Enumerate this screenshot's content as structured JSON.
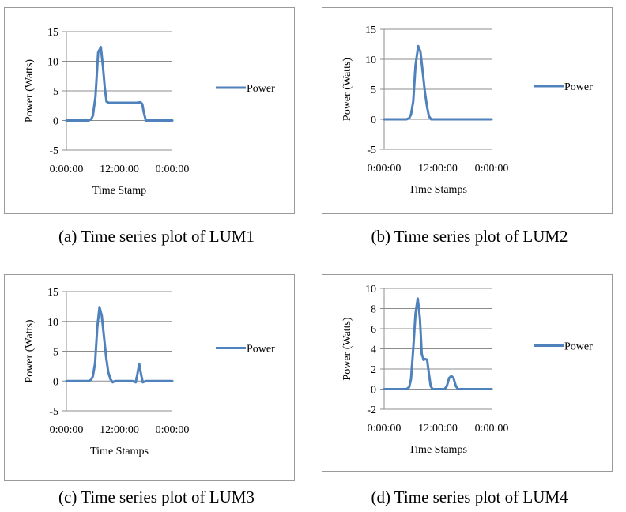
{
  "colors": {
    "series": "#4f81bd",
    "grid": "#8c8c8c",
    "border": "#9a9a9a"
  },
  "captions": [
    "(a) Time series plot of LUM1",
    "(b) Time series plot of LUM2",
    "(c) Time series plot of LUM3",
    "(d) Time series plot of LUM4"
  ],
  "chart_data": [
    {
      "type": "line",
      "xlabel": "Time Stamp",
      "ylabel": "Power (Watts)",
      "x_tick_labels": [
        "0:00:00",
        "12:00:00",
        "0:00:00"
      ],
      "y_ticks": [
        15,
        10,
        5,
        0,
        -5
      ],
      "ylim": [
        -5,
        15
      ],
      "xlim_hours": [
        0,
        24
      ],
      "grid": "horizontal",
      "legend": "right",
      "series": [
        {
          "name": "Power",
          "x_hours": [
            0,
            4,
            5,
            5.6,
            6,
            6.6,
            7.2,
            7.8,
            8.3,
            8.7,
            9.1,
            9.6,
            10.5,
            13,
            16,
            16.8,
            17.2,
            17.5,
            18,
            18.5,
            20,
            24
          ],
          "values": [
            0,
            0,
            0,
            0.2,
            0.8,
            4,
            11.5,
            12.4,
            9,
            5.5,
            3.2,
            3,
            3,
            3,
            3,
            3.1,
            2.8,
            1.5,
            0,
            0,
            0,
            0
          ]
        }
      ]
    },
    {
      "type": "line",
      "xlabel": "Time Stamps",
      "ylabel": "Power (Watts)",
      "x_tick_labels": [
        "0:00:00",
        "12:00:00",
        "0:00:00"
      ],
      "y_ticks": [
        15,
        10,
        5,
        0,
        -5
      ],
      "ylim": [
        -5,
        15
      ],
      "xlim_hours": [
        0,
        24
      ],
      "grid": "horizontal",
      "legend": "right",
      "series": [
        {
          "name": "Power",
          "x_hours": [
            0,
            4,
            5,
            5.6,
            6,
            6.5,
            7,
            7.6,
            8.1,
            8.6,
            9.1,
            9.6,
            10,
            10.5,
            11,
            14,
            24
          ],
          "values": [
            0,
            0,
            0,
            0.2,
            0.8,
            3,
            9,
            12.2,
            11.3,
            8,
            4.5,
            2,
            0.5,
            0,
            0,
            0,
            0
          ]
        }
      ]
    },
    {
      "type": "line",
      "xlabel": "Time Stamps",
      "ylabel": "Power (Watts)",
      "x_tick_labels": [
        "0:00:00",
        "12:00:00",
        "0:00:00"
      ],
      "y_ticks": [
        15,
        10,
        5,
        0,
        -5
      ],
      "ylim": [
        -5,
        15
      ],
      "xlim_hours": [
        0,
        24
      ],
      "grid": "horizontal",
      "legend": "right",
      "series": [
        {
          "name": "Power",
          "x_hours": [
            0,
            4,
            5,
            5.6,
            6,
            6.5,
            7,
            7.5,
            8,
            8.5,
            9,
            9.5,
            10,
            10.5,
            11,
            13,
            15,
            15.7,
            16.1,
            16.5,
            16.9,
            17.3,
            18,
            20,
            24
          ],
          "values": [
            0,
            0,
            0,
            0.2,
            0.8,
            3,
            9,
            12.4,
            11,
            7.5,
            4,
            1.5,
            0.3,
            -0.2,
            0,
            0,
            0,
            -0.2,
            1.2,
            2.9,
            1.2,
            -0.2,
            0,
            0,
            0
          ]
        }
      ]
    },
    {
      "type": "line",
      "xlabel": "Time Stamps",
      "ylabel": "Power (Watts)",
      "x_tick_labels": [
        "0:00:00",
        "12:00:00",
        "0:00:00"
      ],
      "y_ticks": [
        10,
        8,
        6,
        4,
        2,
        0,
        -2
      ],
      "ylim": [
        -2,
        10
      ],
      "xlim_hours": [
        0,
        24
      ],
      "grid": "horizontal",
      "legend": "right",
      "series": [
        {
          "name": "Power",
          "x_hours": [
            0,
            4,
            5,
            5.6,
            6,
            6.5,
            7,
            7.5,
            8,
            8.4,
            8.8,
            9.2,
            9.6,
            10,
            10.4,
            10.8,
            11.2,
            12,
            13.5,
            14,
            14.5,
            15,
            15.5,
            16,
            16.5,
            17,
            18,
            24
          ],
          "values": [
            0,
            0,
            0,
            0.2,
            1,
            4,
            7.5,
            9,
            7,
            3.5,
            2.9,
            3,
            2.9,
            1.5,
            0.3,
            0,
            0,
            0,
            0,
            0.3,
            1.1,
            1.3,
            1.1,
            0.3,
            0,
            0,
            0,
            0
          ]
        }
      ]
    }
  ]
}
